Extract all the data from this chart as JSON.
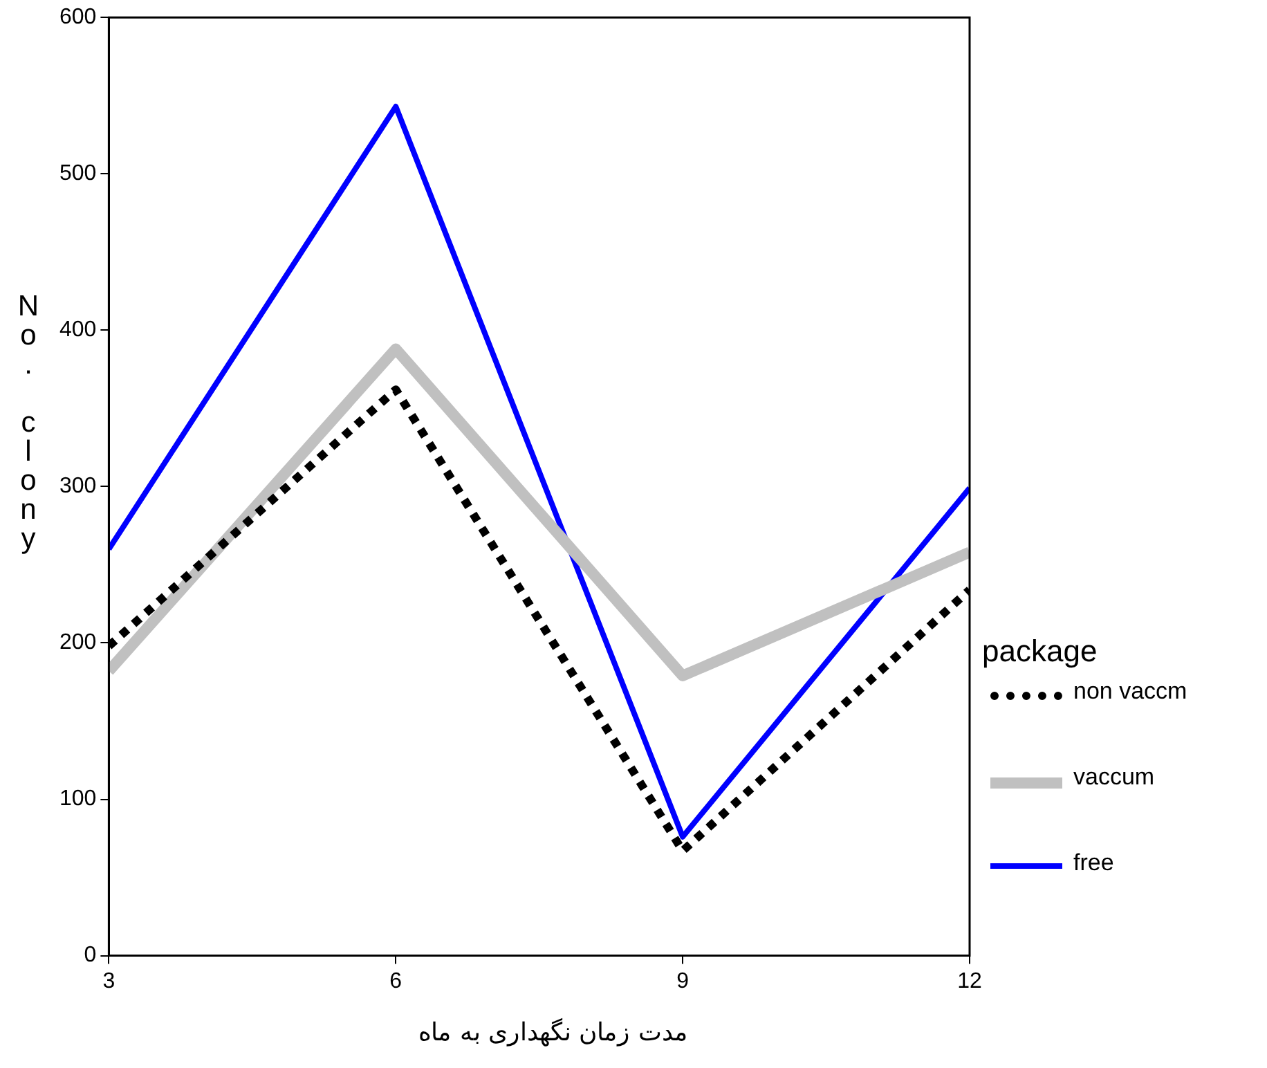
{
  "chart_data": {
    "type": "line",
    "xlabel": "مدت زمان نگهداری به ماه",
    "ylabel": "No. clony",
    "legend_title": "package",
    "legend": "right",
    "grid": false,
    "marker": "none",
    "x": [
      3,
      6,
      9,
      12
    ],
    "xlim": [
      3,
      12
    ],
    "xticks": [
      3,
      6,
      9,
      12
    ],
    "ylim": [
      0,
      600
    ],
    "yticks": [
      0,
      100,
      200,
      300,
      400,
      500,
      600
    ],
    "series": [
      {
        "name": "non vaccm",
        "color": "#000000",
        "line_style": "dotted",
        "values": [
          198,
          362,
          67,
          234
        ]
      },
      {
        "name": "vaccum",
        "color": "#c0c0c0",
        "line_style": "solid",
        "values": [
          182,
          388,
          179,
          258
        ]
      },
      {
        "name": "free",
        "color": "#0000ff",
        "line_style": "solid",
        "values": [
          260,
          543,
          76,
          299
        ]
      }
    ]
  }
}
